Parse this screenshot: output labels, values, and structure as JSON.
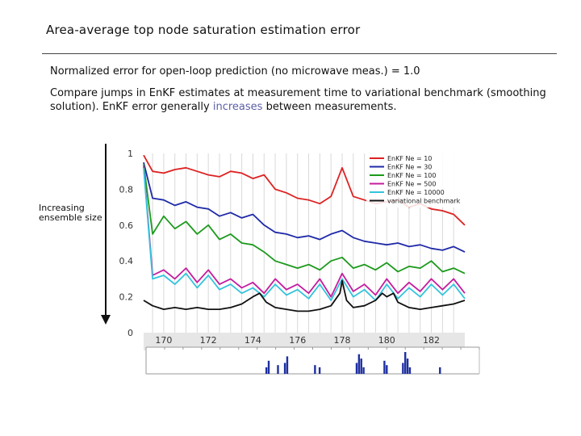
{
  "slide": {
    "title": "Area-average top node saturation estimation error",
    "note1": "Normalized error for open-loop prediction (no microwave meas.) = 1.0",
    "note2_a": "Compare jumps in EnKF estimates at measurement time to variational benchmark (smoothing solution). EnKF error generally ",
    "note2_highlight": "increases",
    "note2_b": " between measurements.",
    "side_label": "Increasing ensemble size"
  },
  "chart_data": {
    "type": "line",
    "title": "",
    "xlabel": "",
    "ylabel": "",
    "xlim": [
      169.1,
      183.5
    ],
    "ylim": [
      0,
      1
    ],
    "x_ticks": [
      "170",
      "172",
      "174",
      "176",
      "178",
      "180",
      "182"
    ],
    "y_ticks": [
      "0",
      "0.2",
      "0.4",
      "0.6",
      "0.8",
      "1"
    ],
    "measurement_days": [
      169.5,
      170.0,
      170.5,
      171.0,
      171.5,
      172.0,
      172.5,
      173.0,
      173.5,
      174.0,
      174.5,
      175.0,
      175.5,
      176.0,
      176.5,
      177.0,
      177.5,
      178.0,
      178.5,
      179.0,
      179.5,
      180.0,
      180.5,
      181.0,
      181.5,
      182.0,
      182.5,
      183.0
    ],
    "legend_position": "top-right",
    "grid": false,
    "series": [
      {
        "name": "EnKF Ne = 10",
        "color": "#dd2222",
        "x": [
          169.1,
          169.5,
          170.0,
          170.5,
          171.0,
          171.5,
          172.0,
          172.5,
          173.0,
          173.5,
          174.0,
          174.5,
          175.0,
          175.5,
          176.0,
          176.5,
          177.0,
          177.5,
          178.0,
          178.5,
          179.0,
          179.5,
          180.0,
          180.5,
          181.0,
          181.5,
          182.0,
          182.5,
          183.0,
          183.5
        ],
        "y": [
          0.99,
          0.9,
          0.89,
          0.91,
          0.92,
          0.9,
          0.88,
          0.87,
          0.9,
          0.89,
          0.86,
          0.88,
          0.8,
          0.78,
          0.75,
          0.74,
          0.72,
          0.76,
          0.92,
          0.76,
          0.74,
          0.72,
          0.73,
          0.74,
          0.7,
          0.72,
          0.69,
          0.68,
          0.66,
          0.6
        ]
      },
      {
        "name": "EnKF Ne = 30",
        "color": "#1f2aa8",
        "x": [
          169.1,
          169.5,
          170.0,
          170.5,
          171.0,
          171.5,
          172.0,
          172.5,
          173.0,
          173.5,
          174.0,
          174.5,
          175.0,
          175.5,
          176.0,
          176.5,
          177.0,
          177.5,
          178.0,
          178.5,
          179.0,
          179.5,
          180.0,
          180.5,
          181.0,
          181.5,
          182.0,
          182.5,
          183.0,
          183.5
        ],
        "y": [
          0.95,
          0.75,
          0.74,
          0.71,
          0.73,
          0.7,
          0.69,
          0.65,
          0.67,
          0.64,
          0.66,
          0.6,
          0.56,
          0.55,
          0.53,
          0.54,
          0.52,
          0.55,
          0.57,
          0.53,
          0.51,
          0.5,
          0.49,
          0.5,
          0.48,
          0.49,
          0.47,
          0.46,
          0.48,
          0.45
        ]
      },
      {
        "name": "EnKF Ne = 100",
        "color": "#1c9a1c",
        "x": [
          169.1,
          169.5,
          170.0,
          170.5,
          171.0,
          171.5,
          172.0,
          172.5,
          173.0,
          173.5,
          174.0,
          174.5,
          175.0,
          175.5,
          176.0,
          176.5,
          177.0,
          177.5,
          178.0,
          178.5,
          179.0,
          179.5,
          180.0,
          180.5,
          181.0,
          181.5,
          182.0,
          182.5,
          183.0,
          183.5
        ],
        "y": [
          0.94,
          0.55,
          0.65,
          0.58,
          0.62,
          0.55,
          0.6,
          0.52,
          0.55,
          0.5,
          0.49,
          0.45,
          0.4,
          0.38,
          0.36,
          0.38,
          0.35,
          0.4,
          0.42,
          0.36,
          0.38,
          0.35,
          0.39,
          0.34,
          0.37,
          0.36,
          0.4,
          0.34,
          0.36,
          0.33
        ]
      },
      {
        "name": "EnKF Ne = 500",
        "color": "#c41c9e",
        "x": [
          169.1,
          169.5,
          170.0,
          170.5,
          171.0,
          171.5,
          172.0,
          172.5,
          173.0,
          173.5,
          174.0,
          174.5,
          175.0,
          175.5,
          176.0,
          176.5,
          177.0,
          177.5,
          178.0,
          178.5,
          179.0,
          179.5,
          180.0,
          180.5,
          181.0,
          181.5,
          182.0,
          182.5,
          183.0,
          183.5
        ],
        "y": [
          0.93,
          0.32,
          0.35,
          0.3,
          0.36,
          0.28,
          0.35,
          0.27,
          0.3,
          0.25,
          0.28,
          0.22,
          0.3,
          0.24,
          0.27,
          0.22,
          0.3,
          0.2,
          0.33,
          0.23,
          0.27,
          0.21,
          0.3,
          0.22,
          0.28,
          0.23,
          0.3,
          0.24,
          0.3,
          0.22
        ]
      },
      {
        "name": "EnKF Ne = 10000",
        "color": "#33c3dd",
        "x": [
          169.1,
          169.5,
          170.0,
          170.5,
          171.0,
          171.5,
          172.0,
          172.5,
          173.0,
          173.5,
          174.0,
          174.5,
          175.0,
          175.5,
          176.0,
          176.5,
          177.0,
          177.5,
          178.0,
          178.5,
          179.0,
          179.5,
          180.0,
          180.5,
          181.0,
          181.5,
          182.0,
          182.5,
          183.0,
          183.5
        ],
        "y": [
          0.92,
          0.3,
          0.32,
          0.27,
          0.33,
          0.25,
          0.32,
          0.24,
          0.27,
          0.22,
          0.25,
          0.2,
          0.27,
          0.21,
          0.24,
          0.19,
          0.27,
          0.18,
          0.3,
          0.2,
          0.24,
          0.18,
          0.27,
          0.19,
          0.25,
          0.2,
          0.27,
          0.21,
          0.27,
          0.19
        ]
      },
      {
        "name": "variational benchmark",
        "color": "#111111",
        "x": [
          169.1,
          169.5,
          170.0,
          170.5,
          171.0,
          171.5,
          172.0,
          172.5,
          173.0,
          173.5,
          174.0,
          174.3,
          174.6,
          175.0,
          175.5,
          176.0,
          176.5,
          177.0,
          177.5,
          177.9,
          178.0,
          178.2,
          178.5,
          179.0,
          179.5,
          179.8,
          180.0,
          180.3,
          180.5,
          181.0,
          181.5,
          182.0,
          182.5,
          183.0,
          183.5
        ],
        "y": [
          0.18,
          0.15,
          0.13,
          0.14,
          0.13,
          0.14,
          0.13,
          0.13,
          0.14,
          0.16,
          0.2,
          0.22,
          0.17,
          0.14,
          0.13,
          0.12,
          0.12,
          0.13,
          0.15,
          0.22,
          0.29,
          0.18,
          0.14,
          0.15,
          0.18,
          0.22,
          0.2,
          0.22,
          0.17,
          0.14,
          0.13,
          0.14,
          0.15,
          0.16,
          0.18
        ]
      }
    ],
    "bottom_panel": {
      "type": "bar",
      "color": "#1e2fa0",
      "x": [
        174.3,
        174.4,
        174.8,
        175.1,
        175.2,
        176.4,
        176.6,
        178.2,
        178.3,
        178.4,
        178.5,
        179.4,
        179.5,
        180.2,
        180.3,
        180.4,
        180.5,
        181.8
      ],
      "values": [
        0.3,
        0.6,
        0.4,
        0.5,
        0.8,
        0.4,
        0.3,
        0.5,
        0.9,
        0.7,
        0.3,
        0.6,
        0.4,
        0.5,
        1.0,
        0.7,
        0.3,
        0.3
      ]
    }
  }
}
